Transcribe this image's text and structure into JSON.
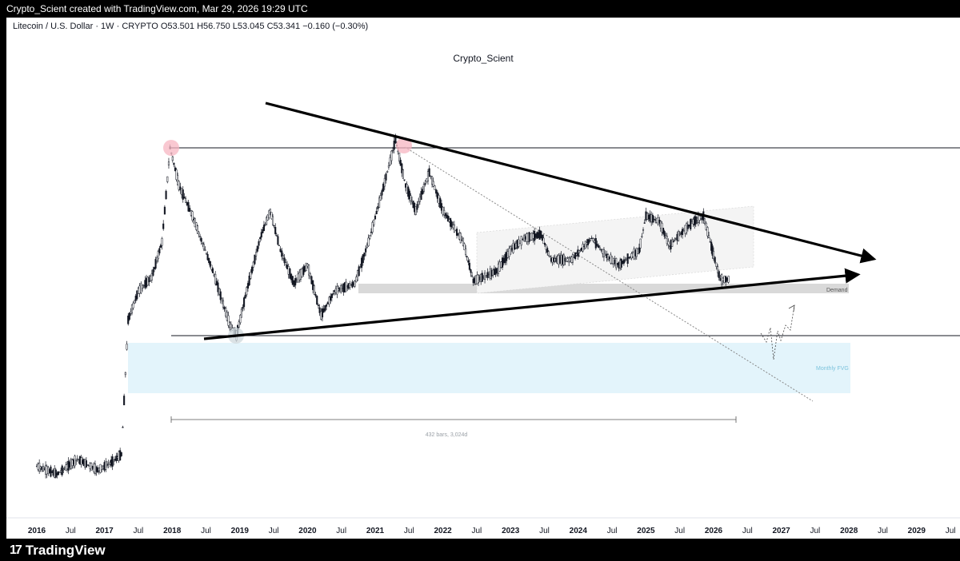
{
  "header": {
    "attribution": "Crypto_Scient created with TradingView.com, Mar 29, 2026 19:29 UTC"
  },
  "symbol": {
    "name": "Litecoin / U.S. Dollar · 1W · CRYPTO",
    "open": "O53.501",
    "high": "H56.750",
    "low": "L53.045",
    "close": "C53.341",
    "change": "−0.160 (−0.30%)"
  },
  "watermark": "Crypto_Scient",
  "footer": {
    "brand": "TradingView"
  },
  "chart_data": {
    "type": "candlestick",
    "x_labels": [
      "2016",
      "Jul",
      "2017",
      "Jul",
      "2018",
      "Jul",
      "2019",
      "Jul",
      "2020",
      "Jul",
      "2021",
      "Jul",
      "2022",
      "Jul",
      "2023",
      "Jul",
      "2024",
      "Jul",
      "2025",
      "Jul",
      "2026",
      "Jul",
      "2027",
      "Jul",
      "2028",
      "Jul",
      "2029",
      "Jul"
    ],
    "year_labels": [
      "2016",
      "2017",
      "2018",
      "2019",
      "2020",
      "2021",
      "2022",
      "2023",
      "2024",
      "2025",
      "2026",
      "2027",
      "2028",
      "2029"
    ],
    "price_path": [
      [
        2016.0,
        3.8
      ],
      [
        2016.3,
        3.4
      ],
      [
        2016.6,
        4.2
      ],
      [
        2016.9,
        3.6
      ],
      [
        2017.1,
        4.0
      ],
      [
        2017.25,
        4.5
      ],
      [
        2017.35,
        30
      ],
      [
        2017.5,
        45
      ],
      [
        2017.7,
        55
      ],
      [
        2017.85,
        90
      ],
      [
        2017.97,
        340
      ],
      [
        2018.1,
        200
      ],
      [
        2018.3,
        130
      ],
      [
        2018.6,
        60
      ],
      [
        2018.85,
        28
      ],
      [
        2018.95,
        24
      ],
      [
        2019.1,
        45
      ],
      [
        2019.3,
        95
      ],
      [
        2019.45,
        140
      ],
      [
        2019.6,
        80
      ],
      [
        2019.8,
        50
      ],
      [
        2020.0,
        65
      ],
      [
        2020.2,
        32
      ],
      [
        2020.4,
        45
      ],
      [
        2020.7,
        50
      ],
      [
        2020.9,
        90
      ],
      [
        2021.1,
        180
      ],
      [
        2021.3,
        380
      ],
      [
        2021.45,
        200
      ],
      [
        2021.6,
        140
      ],
      [
        2021.8,
        240
      ],
      [
        2022.0,
        140
      ],
      [
        2022.3,
        90
      ],
      [
        2022.45,
        52
      ],
      [
        2022.6,
        55
      ],
      [
        2022.8,
        60
      ],
      [
        2023.0,
        80
      ],
      [
        2023.2,
        95
      ],
      [
        2023.45,
        100
      ],
      [
        2023.6,
        70
      ],
      [
        2023.9,
        70
      ],
      [
        2024.2,
        95
      ],
      [
        2024.4,
        75
      ],
      [
        2024.6,
        65
      ],
      [
        2024.9,
        80
      ],
      [
        2025.0,
        130
      ],
      [
        2025.2,
        120
      ],
      [
        2025.35,
        85
      ],
      [
        2025.5,
        100
      ],
      [
        2025.7,
        120
      ],
      [
        2025.85,
        130
      ],
      [
        2025.95,
        90
      ],
      [
        2026.0,
        75
      ],
      [
        2026.1,
        53
      ],
      [
        2026.24,
        53.3
      ]
    ],
    "log_scale": true,
    "annotations": [
      {
        "type": "label",
        "text": "Demand"
      },
      {
        "type": "label",
        "text": "Monthly FVG"
      },
      {
        "type": "measure",
        "text": "432 bars, 3,024d"
      }
    ],
    "colors": {
      "candle": "#131722",
      "trendline": "#000000",
      "demand_zone": "#d9d9d9",
      "fvg_zone": "#e3f4fb",
      "marker": "#f7b6c1",
      "channel": "#eeeeee"
    }
  }
}
